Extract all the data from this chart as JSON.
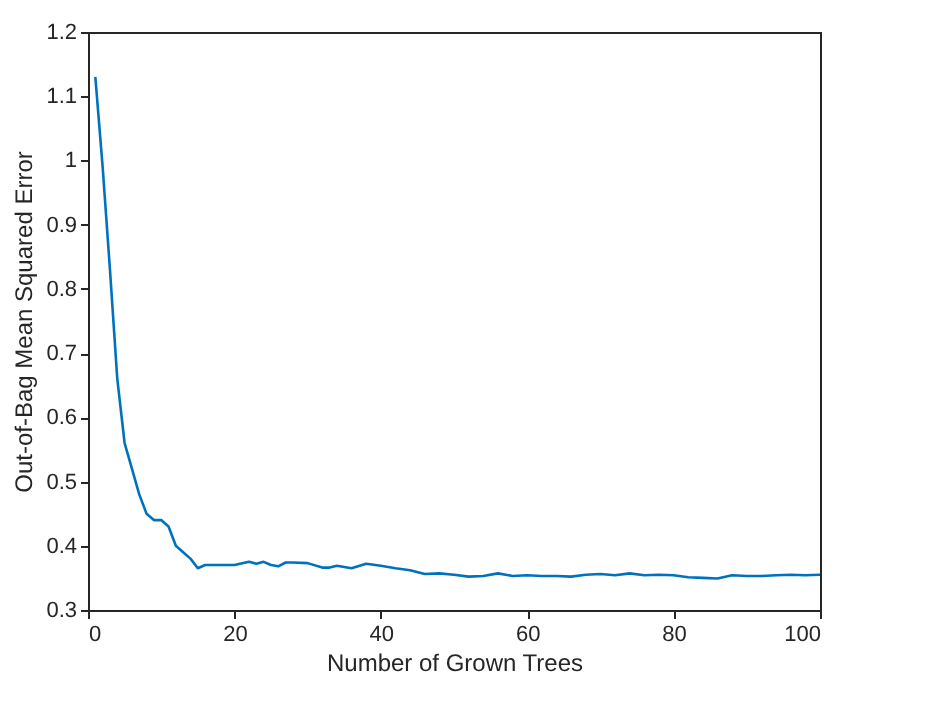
{
  "chart_data": {
    "type": "line",
    "xlabel": "Number of Grown Trees",
    "ylabel": "Out-of-Bag Mean Squared Error",
    "x": [
      1,
      2,
      3,
      4,
      5,
      6,
      7,
      8,
      9,
      10,
      11,
      12,
      13,
      14,
      15,
      16,
      17,
      18,
      20,
      22,
      23,
      24,
      25,
      26,
      27,
      28,
      30,
      32,
      33,
      34,
      36,
      38,
      40,
      42,
      44,
      46,
      48,
      50,
      52,
      54,
      56,
      58,
      60,
      62,
      64,
      66,
      68,
      70,
      72,
      74,
      76,
      78,
      80,
      82,
      84,
      86,
      88,
      90,
      92,
      94,
      96,
      98,
      100
    ],
    "series": [
      {
        "color": "#0072bd",
        "values": [
          1.13,
          0.99,
          0.83,
          0.66,
          0.56,
          0.52,
          0.48,
          0.45,
          0.44,
          0.44,
          0.43,
          0.4,
          0.39,
          0.38,
          0.365,
          0.37,
          0.37,
          0.37,
          0.37,
          0.375,
          0.372,
          0.375,
          0.37,
          0.368,
          0.374,
          0.374,
          0.373,
          0.366,
          0.366,
          0.369,
          0.365,
          0.372,
          0.369,
          0.365,
          0.362,
          0.356,
          0.357,
          0.355,
          0.352,
          0.353,
          0.357,
          0.353,
          0.354,
          0.353,
          0.353,
          0.352,
          0.355,
          0.356,
          0.354,
          0.357,
          0.354,
          0.355,
          0.354,
          0.351,
          0.35,
          0.349,
          0.354,
          0.353,
          0.353,
          0.354,
          0.355,
          0.354,
          0.355
        ]
      }
    ],
    "xlim": [
      0,
      100
    ],
    "xticks": [
      0,
      20,
      40,
      60,
      80,
      100
    ],
    "ylim": [
      0.3,
      1.2
    ],
    "yticks": [
      0.3,
      0.4,
      0.5,
      0.6,
      0.7,
      0.8,
      0.9,
      1,
      1.1,
      1.2
    ],
    "grid": false
  }
}
